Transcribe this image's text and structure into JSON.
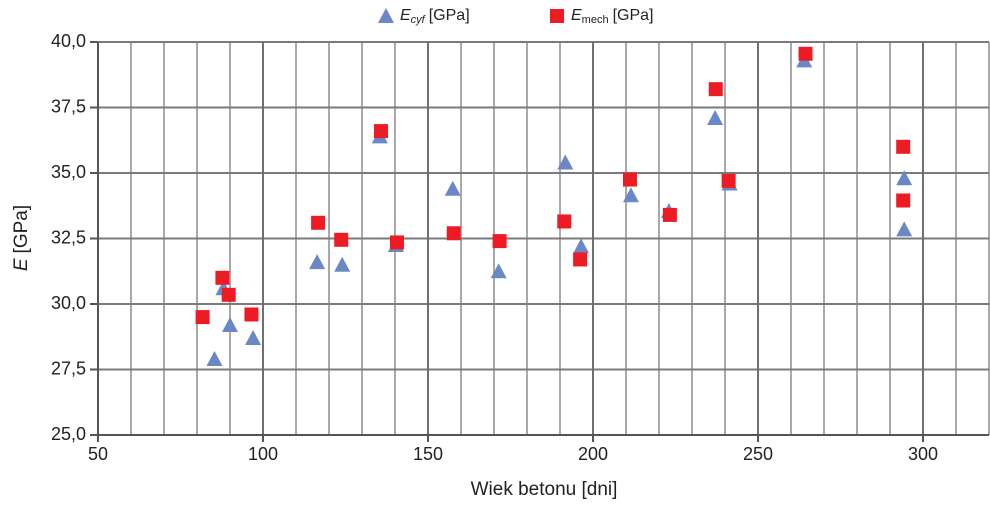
{
  "chart_data": {
    "type": "scatter",
    "xlabel": "Wiek betonu  [dni]",
    "ylabel": "E",
    "ylabel_unit": "[GPa]",
    "xlim": [
      50,
      320
    ],
    "xticks": [
      50,
      100,
      150,
      200,
      250,
      300
    ],
    "xminorticks": [
      60,
      70,
      80,
      90,
      110,
      120,
      130,
      140,
      160,
      170,
      180,
      190,
      210,
      220,
      230,
      240,
      260,
      270,
      280,
      290,
      310,
      320
    ],
    "ylim": [
      25,
      40
    ],
    "yticks": [
      {
        "value": 25,
        "label": "25,0"
      },
      {
        "value": 27.5,
        "label": "27,5"
      },
      {
        "value": 30,
        "label": "30,0"
      },
      {
        "value": 32.5,
        "label": "32,5"
      },
      {
        "value": 35,
        "label": "35,0"
      },
      {
        "value": 37.5,
        "label": "37,5"
      },
      {
        "value": 40,
        "label": "40,0"
      }
    ],
    "grid": true,
    "legend": "top",
    "series": [
      {
        "name": "E",
        "name_sub": "cyf",
        "name_unit": "[GPa]",
        "marker": "triangle",
        "color": "#6b88c6",
        "x": [
          85.3,
          88,
          90,
          97,
          116.4,
          124,
          135.4,
          140.3,
          157.5,
          171.4,
          191.6,
          196.4,
          211.5,
          223,
          237,
          241.4,
          264,
          294.3,
          294.3
        ],
        "values": [
          27.9,
          30.6,
          29.2,
          28.7,
          31.6,
          31.5,
          36.4,
          32.25,
          34.4,
          31.25,
          35.4,
          32.2,
          34.15,
          33.55,
          37.1,
          34.6,
          39.3,
          32.85,
          34.8
        ]
      },
      {
        "name": "E",
        "name_sub": "mech",
        "name_unit": "[GPa]",
        "marker": "square",
        "color": "#ed1c24",
        "x": [
          81.7,
          87.7,
          89.6,
          96.5,
          116.7,
          123.7,
          135.75,
          140.6,
          157.8,
          171.7,
          191.3,
          196.1,
          211.2,
          223.3,
          237.2,
          241.1,
          264.4,
          294,
          294
        ],
        "values": [
          29.5,
          31.0,
          30.35,
          29.6,
          33.1,
          32.45,
          36.6,
          32.35,
          32.7,
          32.4,
          33.15,
          31.7,
          34.75,
          33.4,
          38.2,
          34.7,
          39.55,
          36.0,
          33.95
        ]
      }
    ]
  }
}
